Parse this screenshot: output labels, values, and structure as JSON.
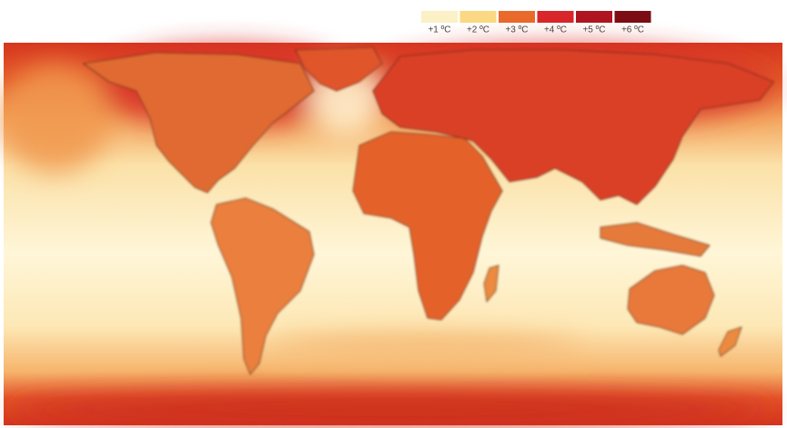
{
  "legend": {
    "items": [
      {
        "label": "+1 ºC",
        "color": "#fbf0c6"
      },
      {
        "label": "+2 ºC",
        "color": "#fbd983"
      },
      {
        "label": "+3 ºC",
        "color": "#ea6a2b"
      },
      {
        "label": "+4 ºC",
        "color": "#d8262a"
      },
      {
        "label": "+5 ºC",
        "color": "#ae1520"
      },
      {
        "label": "+6 ºC",
        "color": "#7c0d14"
      }
    ]
  }
}
